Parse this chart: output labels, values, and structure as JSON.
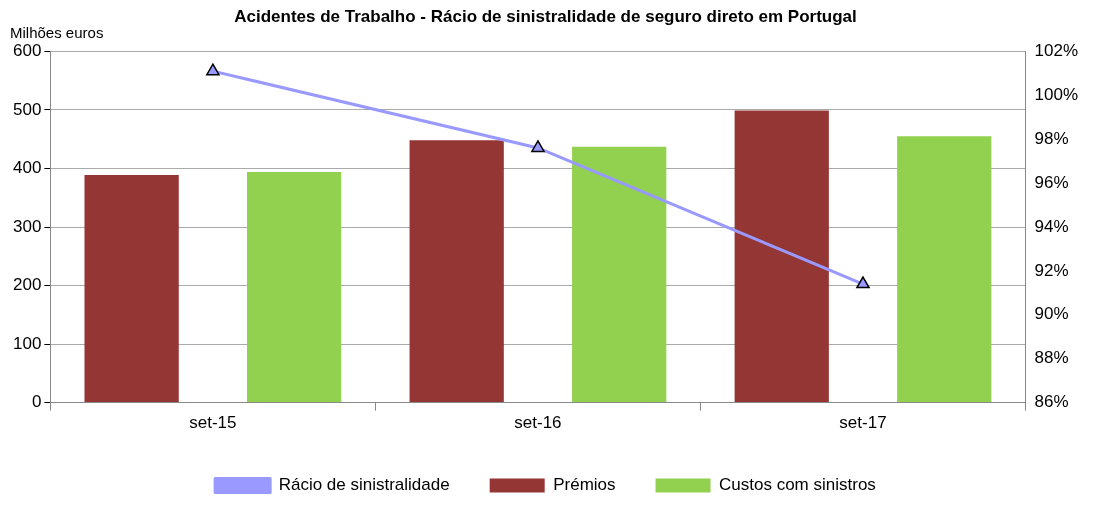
{
  "chart_data": {
    "type": "bar",
    "title": "Acidentes de Trabalho - Rácio de sinistralidade de seguro direto em Portugal",
    "ylabel": "Milhões euros",
    "categories": [
      "set-15",
      "set-16",
      "set-17"
    ],
    "series": [
      {
        "name": "Prémios",
        "color": "#943634",
        "values": [
          389,
          448,
          499
        ]
      },
      {
        "name": "Custos com sinistros",
        "color": "#92d050",
        "values": [
          394,
          437,
          455
        ]
      },
      {
        "name": "Rácio de sinistralidade",
        "type": "line",
        "axis": "y2",
        "color": "#9999ff",
        "marker": "triangle",
        "values": [
          101.1,
          97.6,
          91.4
        ]
      }
    ],
    "ylim": [
      0,
      600
    ],
    "yticks": [
      0,
      100,
      200,
      300,
      400,
      500,
      600
    ],
    "y2lim": [
      86,
      102
    ],
    "y2ticks": [
      {
        "value": 86,
        "label": "86%"
      },
      {
        "value": 88,
        "label": "88%"
      },
      {
        "value": 90,
        "label": "90%"
      },
      {
        "value": 92,
        "label": "92%"
      },
      {
        "value": 94,
        "label": "94%"
      },
      {
        "value": 96,
        "label": "96%"
      },
      {
        "value": 98,
        "label": "98%"
      },
      {
        "value": 100,
        "label": "100%"
      },
      {
        "value": 102,
        "label": "102%"
      }
    ],
    "grid": "y",
    "legend": "bottom"
  }
}
